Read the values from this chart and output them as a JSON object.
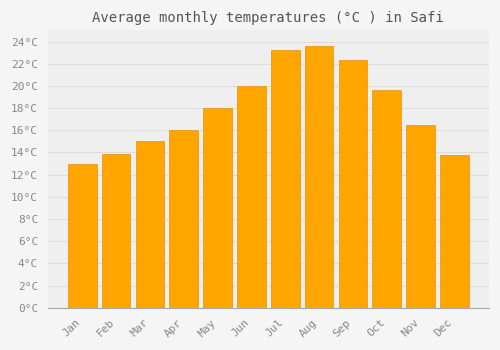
{
  "title": "Average monthly temperatures (°C ) in Safi",
  "months": [
    "Jan",
    "Feb",
    "Mar",
    "Apr",
    "May",
    "Jun",
    "Jul",
    "Aug",
    "Sep",
    "Oct",
    "Nov",
    "Dec"
  ],
  "temperatures": [
    13.0,
    13.9,
    15.0,
    16.0,
    18.0,
    20.0,
    23.2,
    23.6,
    22.3,
    19.6,
    16.5,
    13.8
  ],
  "bar_color": "#FFA500",
  "bar_edge_color": "#E8900A",
  "background_color": "#F5F5F5",
  "plot_bg_color": "#EFEFEF",
  "grid_color": "#DDDDDD",
  "ylim": [
    0,
    25
  ],
  "yticks": [
    0,
    2,
    4,
    6,
    8,
    10,
    12,
    14,
    16,
    18,
    20,
    22,
    24
  ],
  "title_fontsize": 10,
  "tick_fontsize": 8,
  "font_family": "monospace",
  "title_color": "#555555",
  "tick_color": "#888888"
}
